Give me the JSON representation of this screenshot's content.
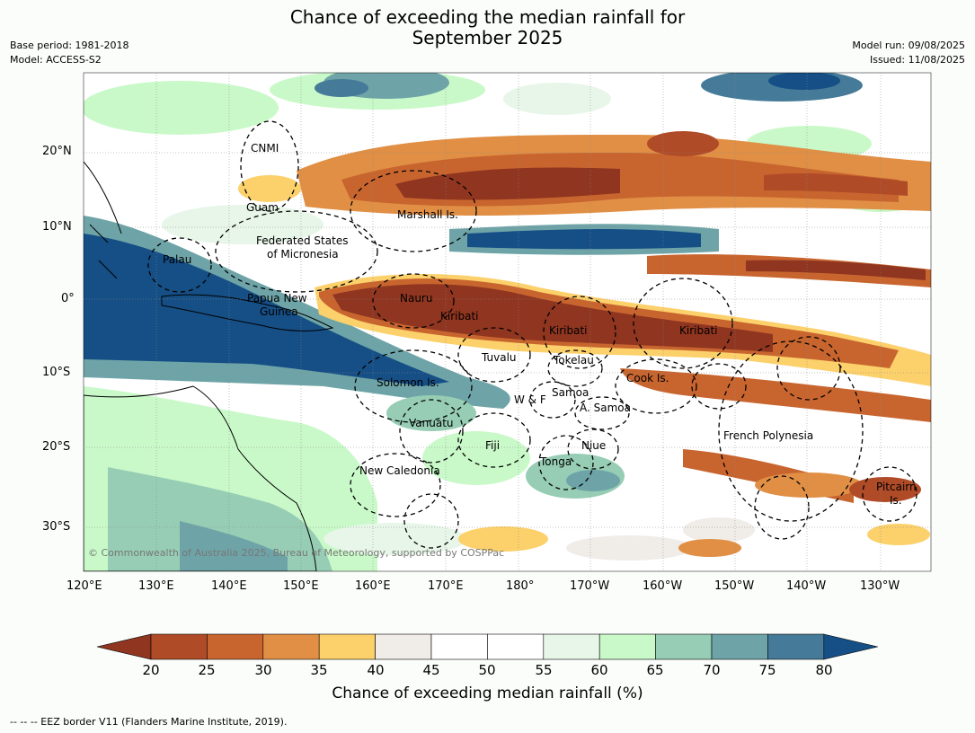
{
  "title_line1": "Chance of exceeding the median rainfall for",
  "title_line2": "September 2025",
  "meta_left": [
    "Base period: 1981-2018",
    "Model: ACCESS-S2"
  ],
  "meta_right": [
    "Model run: 09/08/2025",
    "Issued: 11/08/2025"
  ],
  "copyright": "© Commonwealth of Australia 2025, Bureau of Meteorology, supported by COSPPac",
  "lat_labels": [
    "20°N",
    "10°N",
    "0°",
    "10°S",
    "20°S",
    "30°S"
  ],
  "lon_labels": [
    "120°E",
    "130°E",
    "140°E",
    "150°E",
    "160°E",
    "170°E",
    "180°",
    "170°W",
    "160°W",
    "150°W",
    "140°W",
    "130°W"
  ],
  "region_labels": [
    "CNMI",
    "Guam",
    "Marshall Is.",
    "Federated States",
    "of Micronesia",
    "Palau",
    "Papua New",
    "Guinea",
    "Nauru",
    "Kiribati",
    "Kiribati",
    "Kiribati",
    "Tuvalu",
    "Tokelau",
    "Cook Is.",
    "Solomon Is.",
    "Samoa",
    "W & F",
    "A. Samoa",
    "Vanuatu",
    "Fiji",
    "Niue",
    "Tonga",
    "French Polynesia",
    "New Caledonia",
    "Pitcairn",
    "Is."
  ],
  "colorbar": {
    "ticks": [
      "20",
      "25",
      "30",
      "35",
      "40",
      "45",
      "50",
      "55",
      "60",
      "65",
      "70",
      "75",
      "80"
    ],
    "colors": [
      "#8f3520",
      "#b04b28",
      "#c8652f",
      "#e08f45",
      "#fcd06a",
      "#f0ece7",
      "#ffffff",
      "#ffffff",
      "#e7f6e8",
      "#c9f9c9",
      "#96cdb4",
      "#6ea4a7",
      "#457a98",
      "#164f85"
    ],
    "label": "Chance of exceeding median rainfall (%)"
  },
  "footer": "--  --  -- EEZ border V11 (Flanders Marine Institute, 2019)."
}
